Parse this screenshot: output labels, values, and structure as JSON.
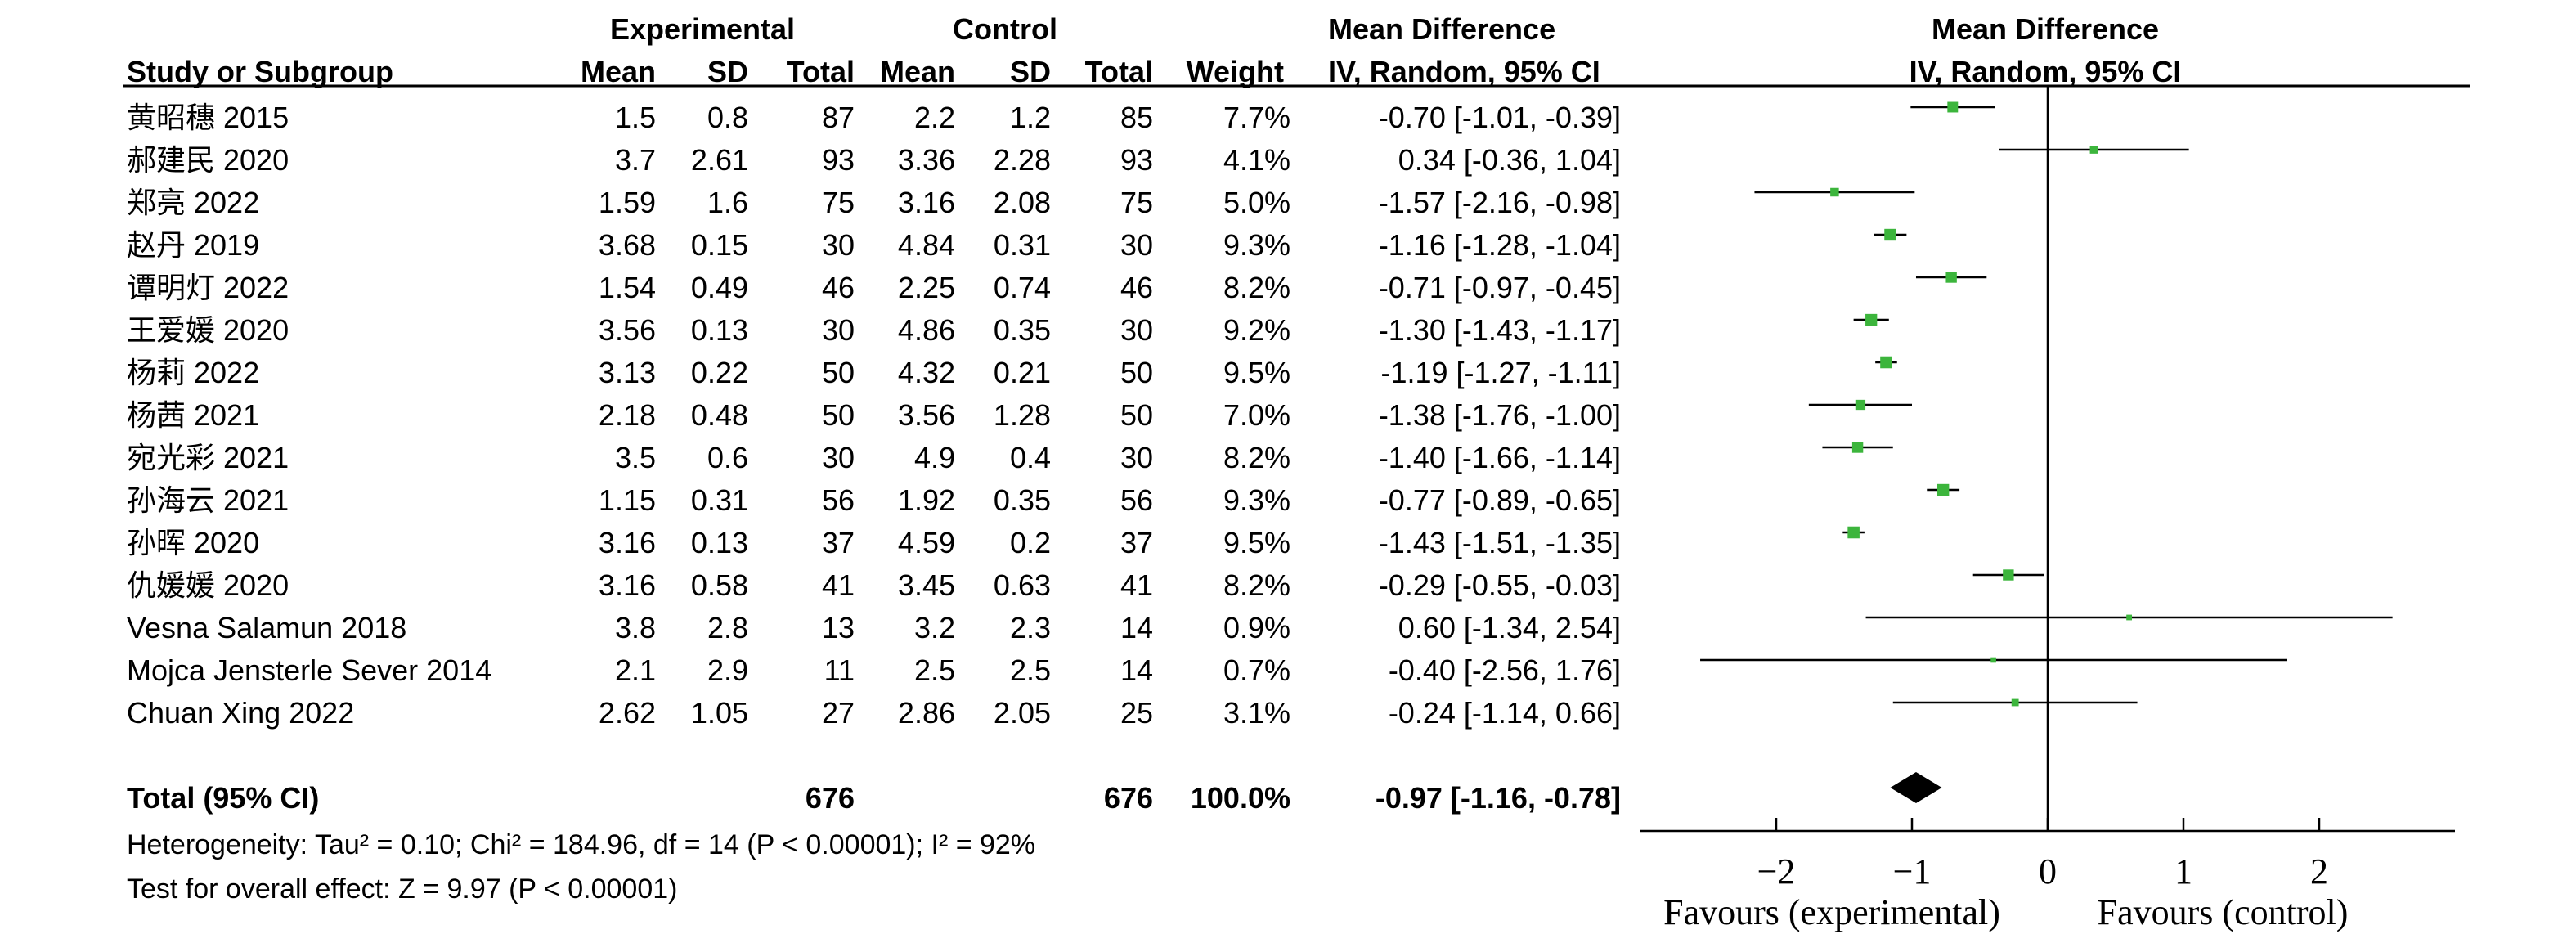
{
  "colors": {
    "marker": "#3cb53c",
    "ink": "#000000",
    "background": "#ffffff"
  },
  "header": {
    "experimental": "Experimental",
    "control": "Control",
    "md_title": "Mean Difference",
    "md_method": "IV, Random, 95% CI",
    "plot_title": "Mean Difference",
    "plot_method": "IV, Random, 95% CI",
    "study": "Study or Subgroup",
    "mean": "Mean",
    "sd": "SD",
    "total": "Total",
    "weight": "Weight"
  },
  "studies": [
    {
      "name": "黄昭穗 2015",
      "exp_mean": "1.5",
      "exp_sd": "0.8",
      "exp_total": "87",
      "ctrl_mean": "2.2",
      "ctrl_sd": "1.2",
      "ctrl_total": "85",
      "weight": "7.7%",
      "ci_text": "-0.70 [-1.01, -0.39]"
    },
    {
      "name": "郝建民 2020",
      "exp_mean": "3.7",
      "exp_sd": "2.61",
      "exp_total": "93",
      "ctrl_mean": "3.36",
      "ctrl_sd": "2.28",
      "ctrl_total": "93",
      "weight": "4.1%",
      "ci_text": "0.34 [-0.36, 1.04]"
    },
    {
      "name": "郑亮 2022",
      "exp_mean": "1.59",
      "exp_sd": "1.6",
      "exp_total": "75",
      "ctrl_mean": "3.16",
      "ctrl_sd": "2.08",
      "ctrl_total": "75",
      "weight": "5.0%",
      "ci_text": "-1.57 [-2.16, -0.98]"
    },
    {
      "name": "赵丹 2019",
      "exp_mean": "3.68",
      "exp_sd": "0.15",
      "exp_total": "30",
      "ctrl_mean": "4.84",
      "ctrl_sd": "0.31",
      "ctrl_total": "30",
      "weight": "9.3%",
      "ci_text": "-1.16 [-1.28, -1.04]"
    },
    {
      "name": "谭明灯 2022",
      "exp_mean": "1.54",
      "exp_sd": "0.49",
      "exp_total": "46",
      "ctrl_mean": "2.25",
      "ctrl_sd": "0.74",
      "ctrl_total": "46",
      "weight": "8.2%",
      "ci_text": "-0.71 [-0.97, -0.45]"
    },
    {
      "name": "王爱媛 2020",
      "exp_mean": "3.56",
      "exp_sd": "0.13",
      "exp_total": "30",
      "ctrl_mean": "4.86",
      "ctrl_sd": "0.35",
      "ctrl_total": "30",
      "weight": "9.2%",
      "ci_text": "-1.30 [-1.43, -1.17]"
    },
    {
      "name": "杨莉 2022",
      "exp_mean": "3.13",
      "exp_sd": "0.22",
      "exp_total": "50",
      "ctrl_mean": "4.32",
      "ctrl_sd": "0.21",
      "ctrl_total": "50",
      "weight": "9.5%",
      "ci_text": "-1.19 [-1.27, -1.11]"
    },
    {
      "name": "杨茜 2021",
      "exp_mean": "2.18",
      "exp_sd": "0.48",
      "exp_total": "50",
      "ctrl_mean": "3.56",
      "ctrl_sd": "1.28",
      "ctrl_total": "50",
      "weight": "7.0%",
      "ci_text": "-1.38 [-1.76, -1.00]"
    },
    {
      "name": "宛光彩 2021",
      "exp_mean": "3.5",
      "exp_sd": "0.6",
      "exp_total": "30",
      "ctrl_mean": "4.9",
      "ctrl_sd": "0.4",
      "ctrl_total": "30",
      "weight": "8.2%",
      "ci_text": "-1.40 [-1.66, -1.14]"
    },
    {
      "name": "孙海云 2021",
      "exp_mean": "1.15",
      "exp_sd": "0.31",
      "exp_total": "56",
      "ctrl_mean": "1.92",
      "ctrl_sd": "0.35",
      "ctrl_total": "56",
      "weight": "9.3%",
      "ci_text": "-0.77 [-0.89, -0.65]"
    },
    {
      "name": "孙晖 2020",
      "exp_mean": "3.16",
      "exp_sd": "0.13",
      "exp_total": "37",
      "ctrl_mean": "4.59",
      "ctrl_sd": "0.2",
      "ctrl_total": "37",
      "weight": "9.5%",
      "ci_text": "-1.43 [-1.51, -1.35]"
    },
    {
      "name": "仇媛媛 2020",
      "exp_mean": "3.16",
      "exp_sd": "0.58",
      "exp_total": "41",
      "ctrl_mean": "3.45",
      "ctrl_sd": "0.63",
      "ctrl_total": "41",
      "weight": "8.2%",
      "ci_text": "-0.29 [-0.55, -0.03]"
    },
    {
      "name": "Vesna Salamun 2018",
      "exp_mean": "3.8",
      "exp_sd": "2.8",
      "exp_total": "13",
      "ctrl_mean": "3.2",
      "ctrl_sd": "2.3",
      "ctrl_total": "14",
      "weight": "0.9%",
      "ci_text": "0.60 [-1.34, 2.54]"
    },
    {
      "name": "Mojca Jensterle Sever 2014",
      "exp_mean": "2.1",
      "exp_sd": "2.9",
      "exp_total": "11",
      "ctrl_mean": "2.5",
      "ctrl_sd": "2.5",
      "ctrl_total": "14",
      "weight": "0.7%",
      "ci_text": "-0.40 [-2.56, 1.76]"
    },
    {
      "name": "Chuan Xing 2022",
      "exp_mean": "2.62",
      "exp_sd": "1.05",
      "exp_total": "27",
      "ctrl_mean": "2.86",
      "ctrl_sd": "2.05",
      "ctrl_total": "25",
      "weight": "3.1%",
      "ci_text": "-0.24 [-1.14, 0.66]"
    }
  ],
  "total": {
    "label": "Total (95% CI)",
    "exp_total": "676",
    "ctrl_total": "676",
    "weight": "100.0%",
    "ci_text": "-0.97 [-1.16, -0.78]"
  },
  "footer": {
    "heterogeneity": "Heterogeneity: Tau² = 0.10; Chi² = 184.96, df = 14 (P < 0.00001); I² = 92%",
    "overall_effect": "Test for overall effect: Z = 9.97 (P < 0.00001)"
  },
  "axis_texts": {
    "favours_left": "Favours (experimental)",
    "favours_right": "Favours (control)"
  },
  "chart_data": {
    "type": "scatter",
    "subtype": "forest",
    "title": "Mean Difference",
    "subtitle": "IV, Random, 95% CI",
    "xlim": [
      -3.0,
      3.0
    ],
    "xticks": [
      -2,
      -1,
      0,
      1,
      2
    ],
    "xtick_labels": [
      "−2",
      "−1",
      "0",
      "1",
      "2"
    ],
    "reference_line": 0,
    "studies": [
      {
        "name": "黄昭穗 2015",
        "md": -0.7,
        "lo": -1.01,
        "hi": -0.39,
        "weight": 7.7
      },
      {
        "name": "郝建民 2020",
        "md": 0.34,
        "lo": -0.36,
        "hi": 1.04,
        "weight": 4.1
      },
      {
        "name": "郑亮 2022",
        "md": -1.57,
        "lo": -2.16,
        "hi": -0.98,
        "weight": 5.0
      },
      {
        "name": "赵丹 2019",
        "md": -1.16,
        "lo": -1.28,
        "hi": -1.04,
        "weight": 9.3
      },
      {
        "name": "谭明灯 2022",
        "md": -0.71,
        "lo": -0.97,
        "hi": -0.45,
        "weight": 8.2
      },
      {
        "name": "王爱媛 2020",
        "md": -1.3,
        "lo": -1.43,
        "hi": -1.17,
        "weight": 9.2
      },
      {
        "name": "杨莉 2022",
        "md": -1.19,
        "lo": -1.27,
        "hi": -1.11,
        "weight": 9.5
      },
      {
        "name": "杨茜 2021",
        "md": -1.38,
        "lo": -1.76,
        "hi": -1.0,
        "weight": 7.0
      },
      {
        "name": "宛光彩 2021",
        "md": -1.4,
        "lo": -1.66,
        "hi": -1.14,
        "weight": 8.2
      },
      {
        "name": "孙海云 2021",
        "md": -0.77,
        "lo": -0.89,
        "hi": -0.65,
        "weight": 9.3
      },
      {
        "name": "孙晖 2020",
        "md": -1.43,
        "lo": -1.51,
        "hi": -1.35,
        "weight": 9.5
      },
      {
        "name": "仇媛媛 2020",
        "md": -0.29,
        "lo": -0.55,
        "hi": -0.03,
        "weight": 8.2
      },
      {
        "name": "Vesna Salamun 2018",
        "md": 0.6,
        "lo": -1.34,
        "hi": 2.54,
        "weight": 0.9
      },
      {
        "name": "Mojca Jensterle Sever 2014",
        "md": -0.4,
        "lo": -2.56,
        "hi": 1.76,
        "weight": 0.7
      },
      {
        "name": "Chuan Xing 2022",
        "md": -0.24,
        "lo": -1.14,
        "hi": 0.66,
        "weight": 3.1
      }
    ],
    "pooled": {
      "name": "Total (95% CI)",
      "md": -0.97,
      "lo": -1.16,
      "hi": -0.78,
      "weight": 100.0
    }
  }
}
